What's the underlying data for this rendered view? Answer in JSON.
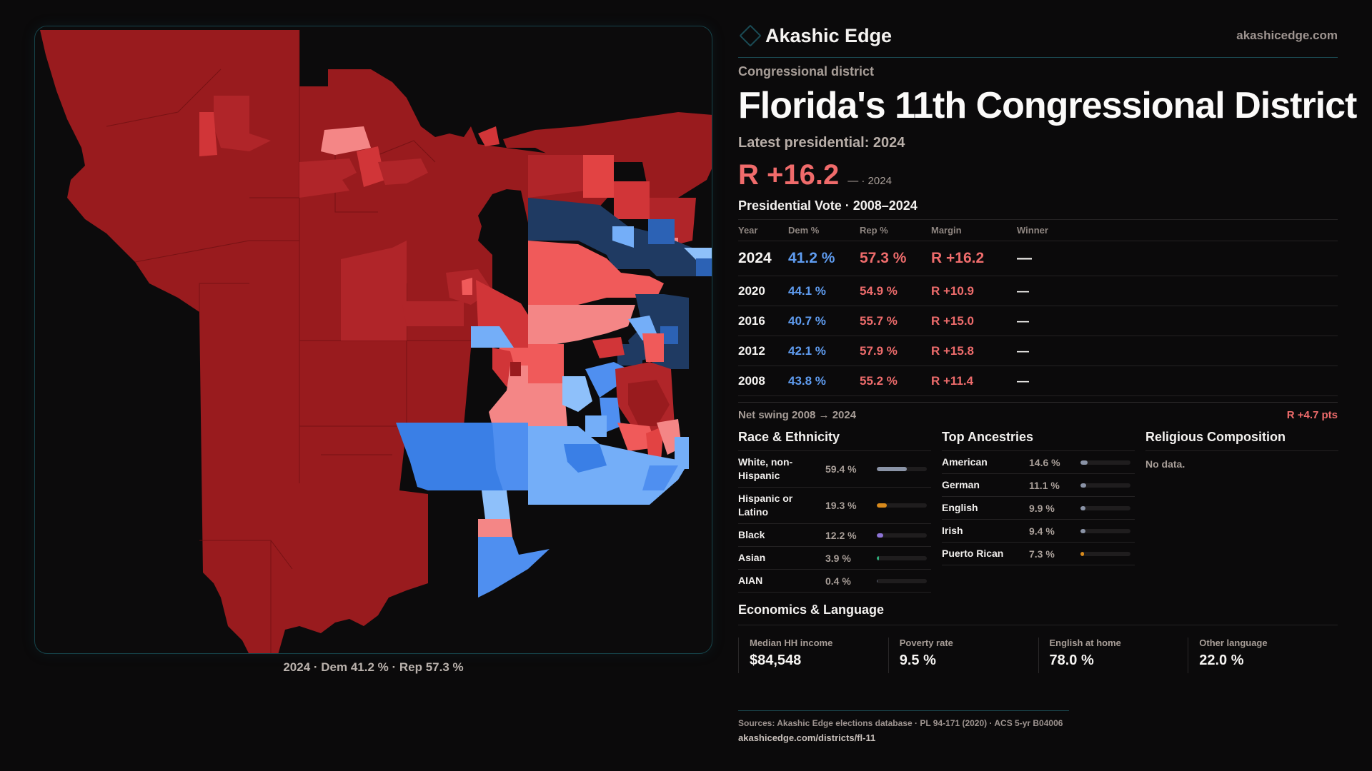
{
  "map": {
    "caption": "2024 · Dem 41.2 % · Rep 57.3 %",
    "colors": {
      "rep_strong": "#991b1e",
      "rep_likely": "#b02529",
      "rep_lean": "#d13538",
      "rep_tilt": "#f05a5a",
      "rep_narrow": "#f48686",
      "dem_narrow": "#8ec0fa",
      "dem_tilt": "#74aef8",
      "dem_lean": "#4f8ff0",
      "dem_likely": "#3a7fe6",
      "dem_mid": "#2c62b5",
      "dem_strong": "#1f3a62"
    }
  },
  "header": {
    "brand_icon": "diamond-icon",
    "brand_name": "Akashic Edge",
    "site_link": "akashicedge.com"
  },
  "district": {
    "kicker": "Congressional district",
    "title": "Florida's 11th Congressional District",
    "latest_label": "Latest presidential: 2024",
    "margin": "R +16.2",
    "margin_sub": "— · 2024"
  },
  "presidential": {
    "heading": "Presidential Vote · 2008–2024",
    "columns": [
      "Year",
      "Dem %",
      "Rep %",
      "Margin",
      "Winner"
    ],
    "rows": [
      {
        "year": "2024",
        "dem": "41.2 %",
        "rep": "57.3 %",
        "margin": "R +16.2",
        "winner": "—"
      },
      {
        "year": "2020",
        "dem": "44.1 %",
        "rep": "54.9 %",
        "margin": "R +10.9",
        "winner": "—"
      },
      {
        "year": "2016",
        "dem": "40.7 %",
        "rep": "55.7 %",
        "margin": "R +15.0",
        "winner": "—"
      },
      {
        "year": "2012",
        "dem": "42.1 %",
        "rep": "57.9 %",
        "margin": "R +15.8",
        "winner": "—"
      },
      {
        "year": "2008",
        "dem": "43.8 %",
        "rep": "55.2 %",
        "margin": "R +11.4",
        "winner": "—"
      }
    ],
    "swing_label": "Net swing 2008 → 2024",
    "swing_value": "R +4.7 pts"
  },
  "race": {
    "heading": "Race & Ethnicity",
    "items": [
      {
        "label": "White, non-Hispanic",
        "value": "59.4 %",
        "pct": 59.4,
        "color": "#8a93a6"
      },
      {
        "label": "Hispanic or Latino",
        "value": "19.3 %",
        "pct": 19.3,
        "color": "#d88a1c"
      },
      {
        "label": "Black",
        "value": "12.2 %",
        "pct": 12.2,
        "color": "#8d73d6"
      },
      {
        "label": "Asian",
        "value": "3.9 %",
        "pct": 3.9,
        "color": "#2fae7c"
      },
      {
        "label": "AIAN",
        "value": "0.4 %",
        "pct": 0.4,
        "color": "#5f6677"
      }
    ]
  },
  "ancestries": {
    "heading": "Top Ancestries",
    "items": [
      {
        "label": "American",
        "value": "14.6 %",
        "pct": 14.6,
        "color": "#8a93a6"
      },
      {
        "label": "German",
        "value": "11.1 %",
        "pct": 11.1,
        "color": "#8a93a6"
      },
      {
        "label": "English",
        "value": "9.9 %",
        "pct": 9.9,
        "color": "#8a93a6"
      },
      {
        "label": "Irish",
        "value": "9.4 %",
        "pct": 9.4,
        "color": "#8a93a6"
      },
      {
        "label": "Puerto Rican",
        "value": "7.3 %",
        "pct": 7.3,
        "color": "#d88a1c"
      }
    ]
  },
  "religion": {
    "heading": "Religious Composition",
    "empty": "No data."
  },
  "economics": {
    "heading": "Economics & Language",
    "stats": [
      {
        "label": "Median HH income",
        "value": "$84,548"
      },
      {
        "label": "Poverty rate",
        "value": "9.5 %"
      },
      {
        "label": "English at home",
        "value": "78.0 %"
      },
      {
        "label": "Other language",
        "value": "22.0 %"
      }
    ]
  },
  "footer": {
    "sources": "Sources: Akashic Edge elections database · PL 94-171 (2020) · ACS 5-yr B04006",
    "link": "akashicedge.com/districts/fl-11"
  }
}
